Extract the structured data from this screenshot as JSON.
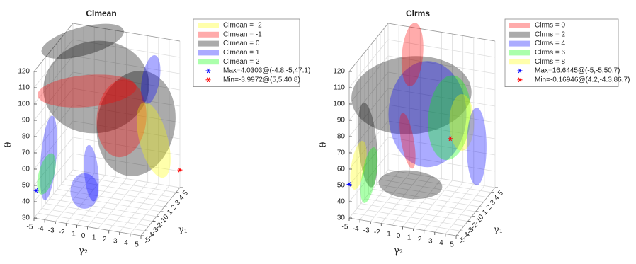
{
  "chart_data": [
    {
      "type": "isosurface",
      "title": "Clmean",
      "xlabel": "γ₂",
      "ylabel": "γ₁",
      "zlabel": "θ",
      "xlim": [
        -5,
        5
      ],
      "ylim": [
        -5,
        5
      ],
      "zlim": [
        30,
        120
      ],
      "xticks": [
        -5,
        -4,
        -3,
        -2,
        -1,
        0,
        1,
        2,
        3,
        4,
        5
      ],
      "yticks": [
        -5,
        -4,
        -3,
        -2,
        -1,
        0,
        1,
        2,
        3,
        4,
        5
      ],
      "zticks": [
        30,
        40,
        50,
        60,
        70,
        80,
        90,
        100,
        110,
        120
      ],
      "grid": true,
      "legend": "outside-right",
      "series": [
        {
          "name": "Clmean = -2",
          "color": "#ffff00"
        },
        {
          "name": "Clmean = -1",
          "color": "#ff0000"
        },
        {
          "name": "Clmean = 0",
          "color": "#000000"
        },
        {
          "name": "Clmean = 1",
          "color": "#0000ff"
        },
        {
          "name": "Clmean = 2",
          "color": "#00ff00"
        }
      ],
      "markers": [
        {
          "name": "Max=4.0303@(-4.8,-5,47.1)",
          "color": "#0000ff",
          "x": -4.8,
          "y": -5,
          "z": 47.1
        },
        {
          "name": "Min=-3.9972@(5,5,40.8)",
          "color": "#ff0000",
          "x": 5,
          "y": 5,
          "z": 40.8
        }
      ]
    },
    {
      "type": "isosurface",
      "title": "Clrms",
      "xlabel": "γ₂",
      "ylabel": "γ₁",
      "zlabel": "θ",
      "xlim": [
        -5,
        5
      ],
      "ylim": [
        -5,
        5
      ],
      "zlim": [
        30,
        120
      ],
      "xticks": [
        -5,
        -4,
        -3,
        -2,
        -1,
        0,
        1,
        2,
        3,
        4,
        5
      ],
      "yticks": [
        -5,
        -4,
        -3,
        -2,
        -1,
        0,
        1,
        2,
        3,
        4,
        5
      ],
      "zticks": [
        30,
        40,
        50,
        60,
        70,
        80,
        90,
        100,
        110,
        120
      ],
      "grid": true,
      "legend": "outside-right",
      "series": [
        {
          "name": "Clrms = 0",
          "color": "#ff0000"
        },
        {
          "name": "Clrms = 2",
          "color": "#000000"
        },
        {
          "name": "Clrms = 4",
          "color": "#0000ff"
        },
        {
          "name": "Clrms = 6",
          "color": "#00ff00"
        },
        {
          "name": "Clrms = 8",
          "color": "#ffff00"
        }
      ],
      "markers": [
        {
          "name": "Max=16.6445@(-5,-5,50.7)",
          "color": "#0000ff",
          "x": -5,
          "y": -5,
          "z": 50.7
        },
        {
          "name": "Min=-0.16946@(4.2,-4.3,86.7)",
          "color": "#ff0000",
          "x": 4.2,
          "y": -4.3,
          "z": 86.7
        }
      ]
    }
  ]
}
